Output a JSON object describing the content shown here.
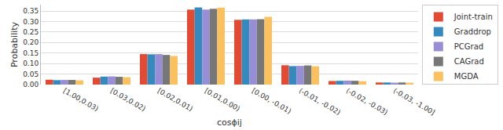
{
  "chart_data": {
    "type": "bar",
    "x_label": "cosϕij",
    "y_label": "Probability",
    "categories": [
      "[1.00,0.03)",
      "[0.03,0.02)",
      "[0.02,0.01)",
      "[0.01,0.00)",
      "[0.00, -0.01)",
      "(-0.01, -0.02)",
      "(-0.02, -0.03)",
      "(-0.03, -1.00]"
    ],
    "series": [
      {
        "name": "Joint-train",
        "color": "#e24a33",
        "values": [
          0.023,
          0.033,
          0.145,
          0.357,
          0.308,
          0.092,
          0.017,
          0.01
        ]
      },
      {
        "name": "Graddrop",
        "color": "#348abd",
        "values": [
          0.021,
          0.038,
          0.144,
          0.367,
          0.31,
          0.088,
          0.018,
          0.01
        ]
      },
      {
        "name": "PCGrad",
        "color": "#988ed5",
        "values": [
          0.022,
          0.039,
          0.145,
          0.357,
          0.31,
          0.089,
          0.019,
          0.009
        ]
      },
      {
        "name": "CAGrad",
        "color": "#777777",
        "values": [
          0.022,
          0.037,
          0.141,
          0.36,
          0.311,
          0.091,
          0.018,
          0.01
        ]
      },
      {
        "name": "MGDA",
        "color": "#fbc15e",
        "values": [
          0.02,
          0.035,
          0.136,
          0.366,
          0.322,
          0.087,
          0.016,
          0.009
        ]
      }
    ],
    "ylim": [
      0,
      0.38
    ],
    "yticks": [
      {
        "value": 0,
        "label": "0.00"
      },
      {
        "value": 0.05,
        "label": "0.05"
      },
      {
        "value": 0.1,
        "label": "0.10"
      },
      {
        "value": 0.15,
        "label": "0.15"
      },
      {
        "value": 0.2,
        "label": "0.20"
      },
      {
        "value": 0.25,
        "label": "0.25"
      },
      {
        "value": 0.3,
        "label": "0.30"
      },
      {
        "value": 0.35,
        "label": "0.35"
      }
    ],
    "grid": true,
    "legend": "upper right"
  }
}
